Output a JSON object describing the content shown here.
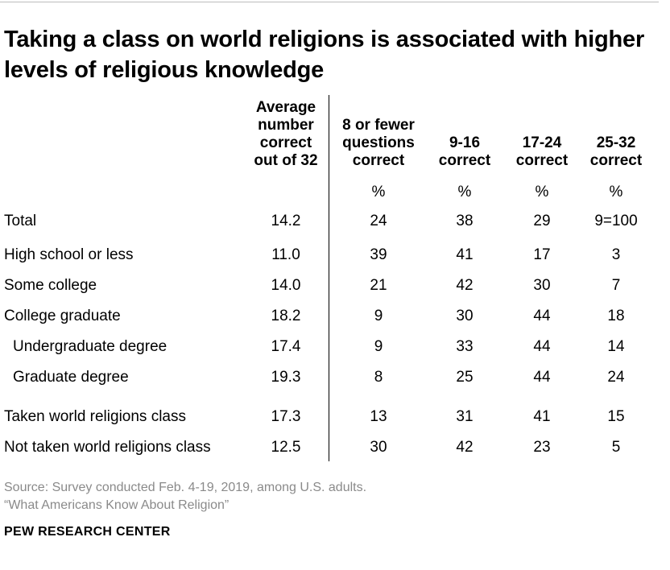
{
  "title": "Taking a class on world religions is associated with higher levels of religious knowledge",
  "chart_data": {
    "type": "table",
    "title": "Taking a class on world religions is associated with higher levels of religious knowledge",
    "columns": [
      "Average number correct out of 32",
      "8 or fewer questions correct",
      "9-16 correct",
      "17-24 correct",
      "25-32 correct"
    ],
    "unit_row": [
      "",
      "%",
      "%",
      "%",
      "%"
    ],
    "rows": [
      {
        "label": "Total",
        "values": [
          "14.2",
          "24",
          "38",
          "29",
          "9=100"
        ]
      },
      {
        "label": "High school or less",
        "values": [
          "11.0",
          "39",
          "41",
          "17",
          "3"
        ]
      },
      {
        "label": "Some college",
        "values": [
          "14.0",
          "21",
          "42",
          "30",
          "7"
        ]
      },
      {
        "label": "College graduate",
        "values": [
          "18.2",
          "9",
          "30",
          "44",
          "18"
        ]
      },
      {
        "label": "Undergraduate degree",
        "values": [
          "17.4",
          "9",
          "33",
          "44",
          "14"
        ]
      },
      {
        "label": "Graduate degree",
        "values": [
          "19.3",
          "8",
          "25",
          "44",
          "24"
        ]
      },
      {
        "label": "Taken world religions class",
        "values": [
          "17.3",
          "13",
          "31",
          "41",
          "15"
        ]
      },
      {
        "label": "Not taken world religions class",
        "values": [
          "12.5",
          "30",
          "42",
          "23",
          "5"
        ]
      }
    ]
  },
  "source": {
    "line1": "Source: Survey conducted Feb. 4-19, 2019, among U.S. adults.",
    "line2": "“What Americans Know About Religion”"
  },
  "brand": "PEW RESEARCH CENTER"
}
